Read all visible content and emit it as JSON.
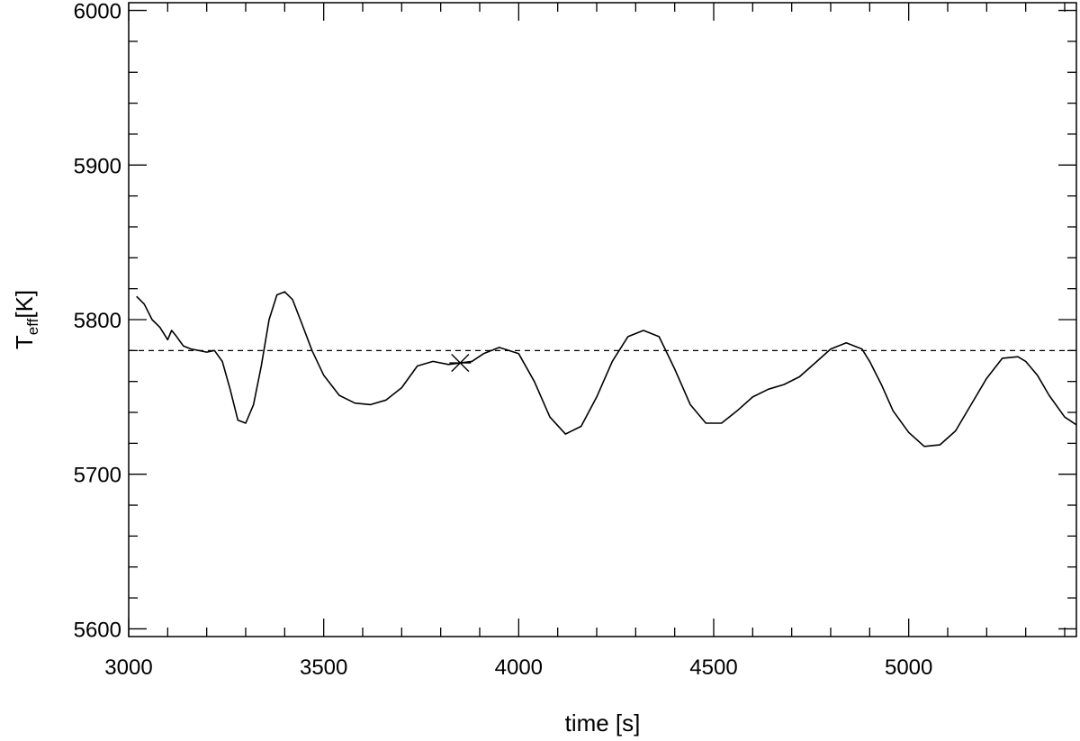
{
  "chart_data": {
    "type": "line",
    "title": "",
    "xlabel": "time [s]",
    "ylabel": {
      "symbol": "T",
      "subscript": "eff",
      "unit": "[K]"
    },
    "xlim": [
      3000,
      5430
    ],
    "ylim": [
      5595,
      6005
    ],
    "x_ticks": [
      3000,
      3500,
      4000,
      4500,
      5000
    ],
    "y_ticks": [
      5600,
      5700,
      5800,
      5900,
      6000
    ],
    "x_ticks_labels": [
      "3000",
      "3500",
      "4000",
      "4500",
      "5000"
    ],
    "y_ticks_labels": [
      "5600",
      "5700",
      "5800",
      "5900",
      "6000"
    ],
    "x_minor_step": 100,
    "y_minor_step": 20,
    "grid": false,
    "reference_line": {
      "y": 5780,
      "style": "dashed"
    },
    "marker": {
      "x": 3850,
      "y": 5772,
      "symbol": "asterisk"
    },
    "series": [
      {
        "x": [
          3020,
          3040,
          3060,
          3080,
          3100,
          3110,
          3120,
          3140,
          3160,
          3180,
          3200,
          3220,
          3240,
          3260,
          3280,
          3300,
          3320,
          3340,
          3360,
          3380,
          3400,
          3420,
          3440,
          3470,
          3500,
          3540,
          3580,
          3620,
          3660,
          3700,
          3740,
          3780,
          3820,
          3850,
          3880,
          3910,
          3950,
          4000,
          4040,
          4080,
          4120,
          4160,
          4200,
          4240,
          4280,
          4320,
          4360,
          4400,
          4440,
          4480,
          4520,
          4560,
          4600,
          4640,
          4680,
          4720,
          4760,
          4800,
          4840,
          4880,
          4900,
          4930,
          4960,
          5000,
          5040,
          5080,
          5120,
          5160,
          5200,
          5240,
          5280,
          5300,
          5330,
          5360,
          5400,
          5430
        ],
        "y": [
          5815,
          5810,
          5800,
          5795,
          5787,
          5793,
          5790,
          5783,
          5781,
          5780,
          5779,
          5780,
          5773,
          5755,
          5735,
          5733,
          5745,
          5770,
          5800,
          5816,
          5818,
          5813,
          5800,
          5780,
          5764,
          5751,
          5746,
          5745,
          5748,
          5756,
          5770,
          5773,
          5771,
          5772,
          5773,
          5778,
          5782,
          5778,
          5760,
          5737,
          5726,
          5731,
          5750,
          5773,
          5789,
          5793,
          5789,
          5768,
          5745,
          5733,
          5733,
          5741,
          5750,
          5755,
          5758,
          5763,
          5772,
          5781,
          5785,
          5781,
          5773,
          5758,
          5741,
          5727,
          5718,
          5719,
          5728,
          5745,
          5762,
          5775,
          5776,
          5773,
          5764,
          5751,
          5737,
          5732
        ]
      }
    ]
  }
}
